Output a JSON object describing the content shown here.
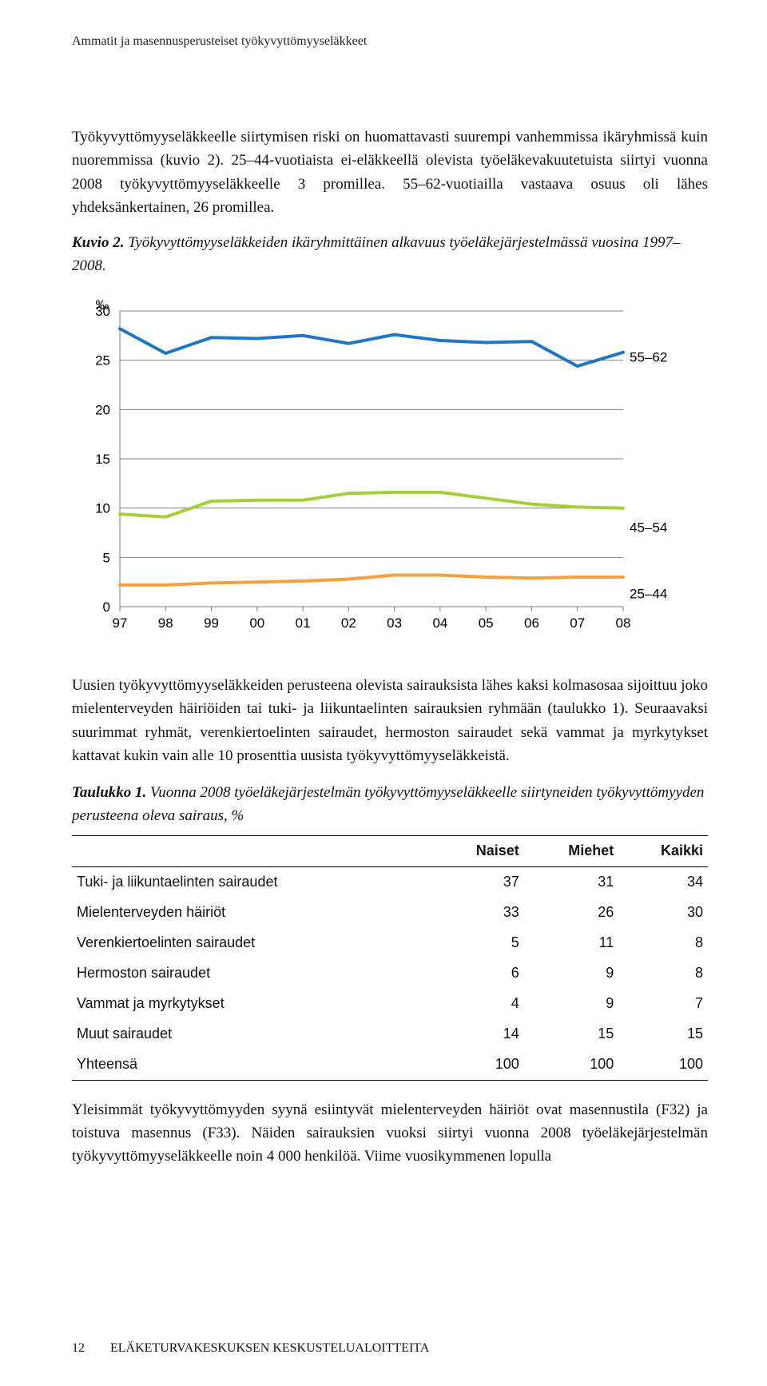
{
  "page": {
    "running_head": "Ammatit ja masennusperusteiset työkyvyttömyyseläkkeet",
    "footer_page_number": "12",
    "footer_text": "ELÄKETURVAKESKUKSEN KESKUSTELUALOITTEITA"
  },
  "paragraphs": {
    "lead_in": "Työkyvyttömyyseläkkeelle siirtymisen riski on huomattavasti suurempi vanhemmissa ikäryhmissä kuin nuoremmissa (kuvio 2). 25–44-vuotiaista ei-eläkkeellä olevista työeläkevakuutetuista siirtyi vuonna 2008 työkyvyttömyyseläkkeelle 3 promillea. 55–62-vuotiailla vastaava osuus oli lähes yhdeksänkertainen, 26 promillea.",
    "mid": "Uusien työkyvyttömyyseläkkeiden perusteena olevista sairauksista lähes kaksi kolmasosaa sijoittuu joko mielenterveyden häiriöiden tai tuki- ja liikuntaelinten sairauksien ryhmään (taulukko 1). Seuraavaksi suurimmat ryhmät, verenkiertoelinten sairaudet, hermoston sairaudet sekä vammat ja myrkytykset kattavat kukin vain alle 10 prosenttia uusista työkyvyttömyyseläkkeistä.",
    "tail": "Yleisimmät työkyvyttömyyden syynä esiintyvät mielenterveyden häiriöt ovat masennustila (F32) ja toistuva masennus (F33). Näiden sairauksien vuoksi siirtyi vuonna 2008 työeläkejärjestelmän työkyvyttömyyseläkkeelle noin 4 000 henkilöä. Viime vuosikymmenen lopulla"
  },
  "kuvio2": {
    "label": "Kuvio 2.",
    "caption": "Työkyvyttömyyseläkkeiden ikäryhmittäinen alkavuus työeläkejärjestelmässä vuosina 1997–2008.",
    "type": "line",
    "y_axis_unit": "‰",
    "years": [
      "97",
      "98",
      "99",
      "00",
      "01",
      "02",
      "03",
      "04",
      "05",
      "06",
      "07",
      "08"
    ],
    "ylim": [
      0,
      30
    ],
    "yticks": [
      0,
      5,
      10,
      15,
      20,
      25,
      30
    ],
    "plot_bg": "#ffffff",
    "gridline_color": "#7f7f7f",
    "axis_color": "#7f7f7f",
    "tick_color": "#7f7f7f",
    "tick_font_size": 17,
    "line_width": 4,
    "series": [
      {
        "name": "55–62",
        "label": "55–62",
        "color": "#1f77c4",
        "values": [
          28.2,
          25.7,
          27.3,
          27.2,
          27.5,
          26.7,
          27.6,
          27.0,
          26.8,
          26.9,
          24.4,
          25.8
        ]
      },
      {
        "name": "45–54",
        "label": "45–54",
        "color": "#a6ce39",
        "values": [
          9.4,
          9.1,
          10.7,
          10.8,
          10.8,
          11.5,
          11.6,
          11.6,
          11.0,
          10.4,
          10.1,
          10.0
        ]
      },
      {
        "name": "25–44",
        "label": "25–44",
        "color": "#f2a13c",
        "values": [
          2.2,
          2.2,
          2.4,
          2.5,
          2.6,
          2.8,
          3.2,
          3.2,
          3.0,
          2.9,
          3.0,
          3.0
        ]
      }
    ],
    "line_labels": {
      "55_62": "55–62",
      "45_54": "45–54",
      "25_44": "25–44"
    }
  },
  "taulukko1": {
    "label": "Taulukko 1.",
    "caption": "Vuonna 2008 työeläkejärjestelmän työkyvyttömyyseläkkeelle siirtyneiden työkyvyttömyyden perusteena oleva sairaus, %",
    "columns": [
      "",
      "Naiset",
      "Miehet",
      "Kaikki"
    ],
    "rows": [
      [
        "Tuki- ja liikuntaelinten sairaudet",
        "37",
        "31",
        "34"
      ],
      [
        "Mielenterveyden häiriöt",
        "33",
        "26",
        "30"
      ],
      [
        "Verenkiertoelinten sairaudet",
        "5",
        "11",
        "8"
      ],
      [
        "Hermoston sairaudet",
        "6",
        "9",
        "8"
      ],
      [
        "Vammat ja myrkytykset",
        "4",
        "9",
        "7"
      ],
      [
        "Muut sairaudet",
        "14",
        "15",
        "15"
      ],
      [
        "Yhteensä",
        "100",
        "100",
        "100"
      ]
    ]
  }
}
